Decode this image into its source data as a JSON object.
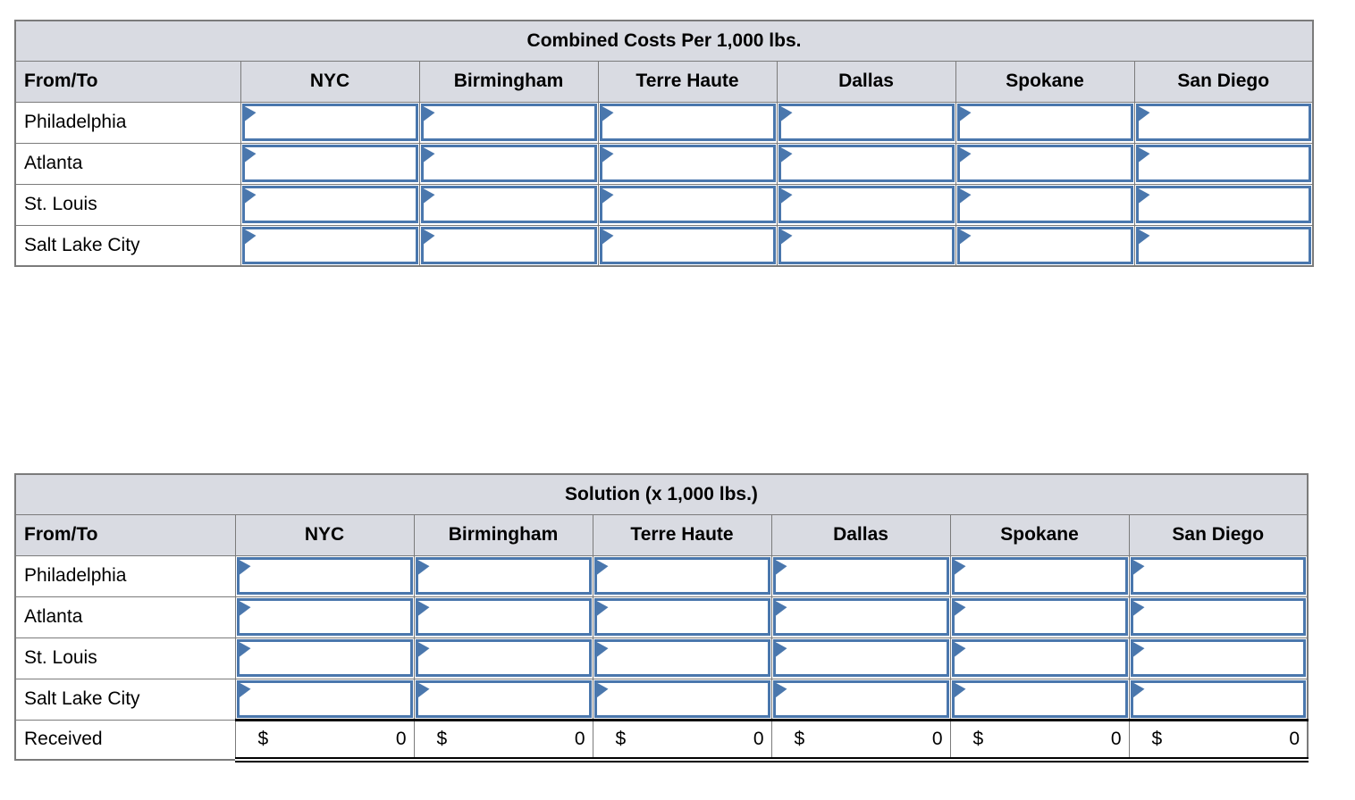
{
  "colors": {
    "input_border_blue": "#4a77ad",
    "grid_border_gray": "#7b7b7b",
    "header_bg": "#d9dbe2"
  },
  "tables": [
    {
      "title": "Combined Costs Per 1,000 lbs.",
      "columns": [
        "From/To",
        "NYC",
        "Birmingham",
        "Terre Haute",
        "Dallas",
        "Spokane",
        "San Diego"
      ],
      "rows": [
        "Philadelphia",
        "Atlanta",
        "St. Louis",
        "Salt Lake City"
      ]
    },
    {
      "title": "Solution (x 1,000 lbs.)",
      "columns": [
        "From/To",
        "NYC",
        "Birmingham",
        "Terre Haute",
        "Dallas",
        "Spokane",
        "San Diego"
      ],
      "rows": [
        "Philadelphia",
        "Atlanta",
        "St. Louis",
        "Salt Lake City"
      ],
      "received": {
        "label": "Received",
        "cells": [
          {
            "currency": "$",
            "value": "0"
          },
          {
            "currency": "$",
            "value": "0"
          },
          {
            "currency": "$",
            "value": "0"
          },
          {
            "currency": "$",
            "value": "0"
          },
          {
            "currency": "$",
            "value": "0"
          },
          {
            "currency": "$",
            "value": "0"
          }
        ]
      }
    }
  ]
}
